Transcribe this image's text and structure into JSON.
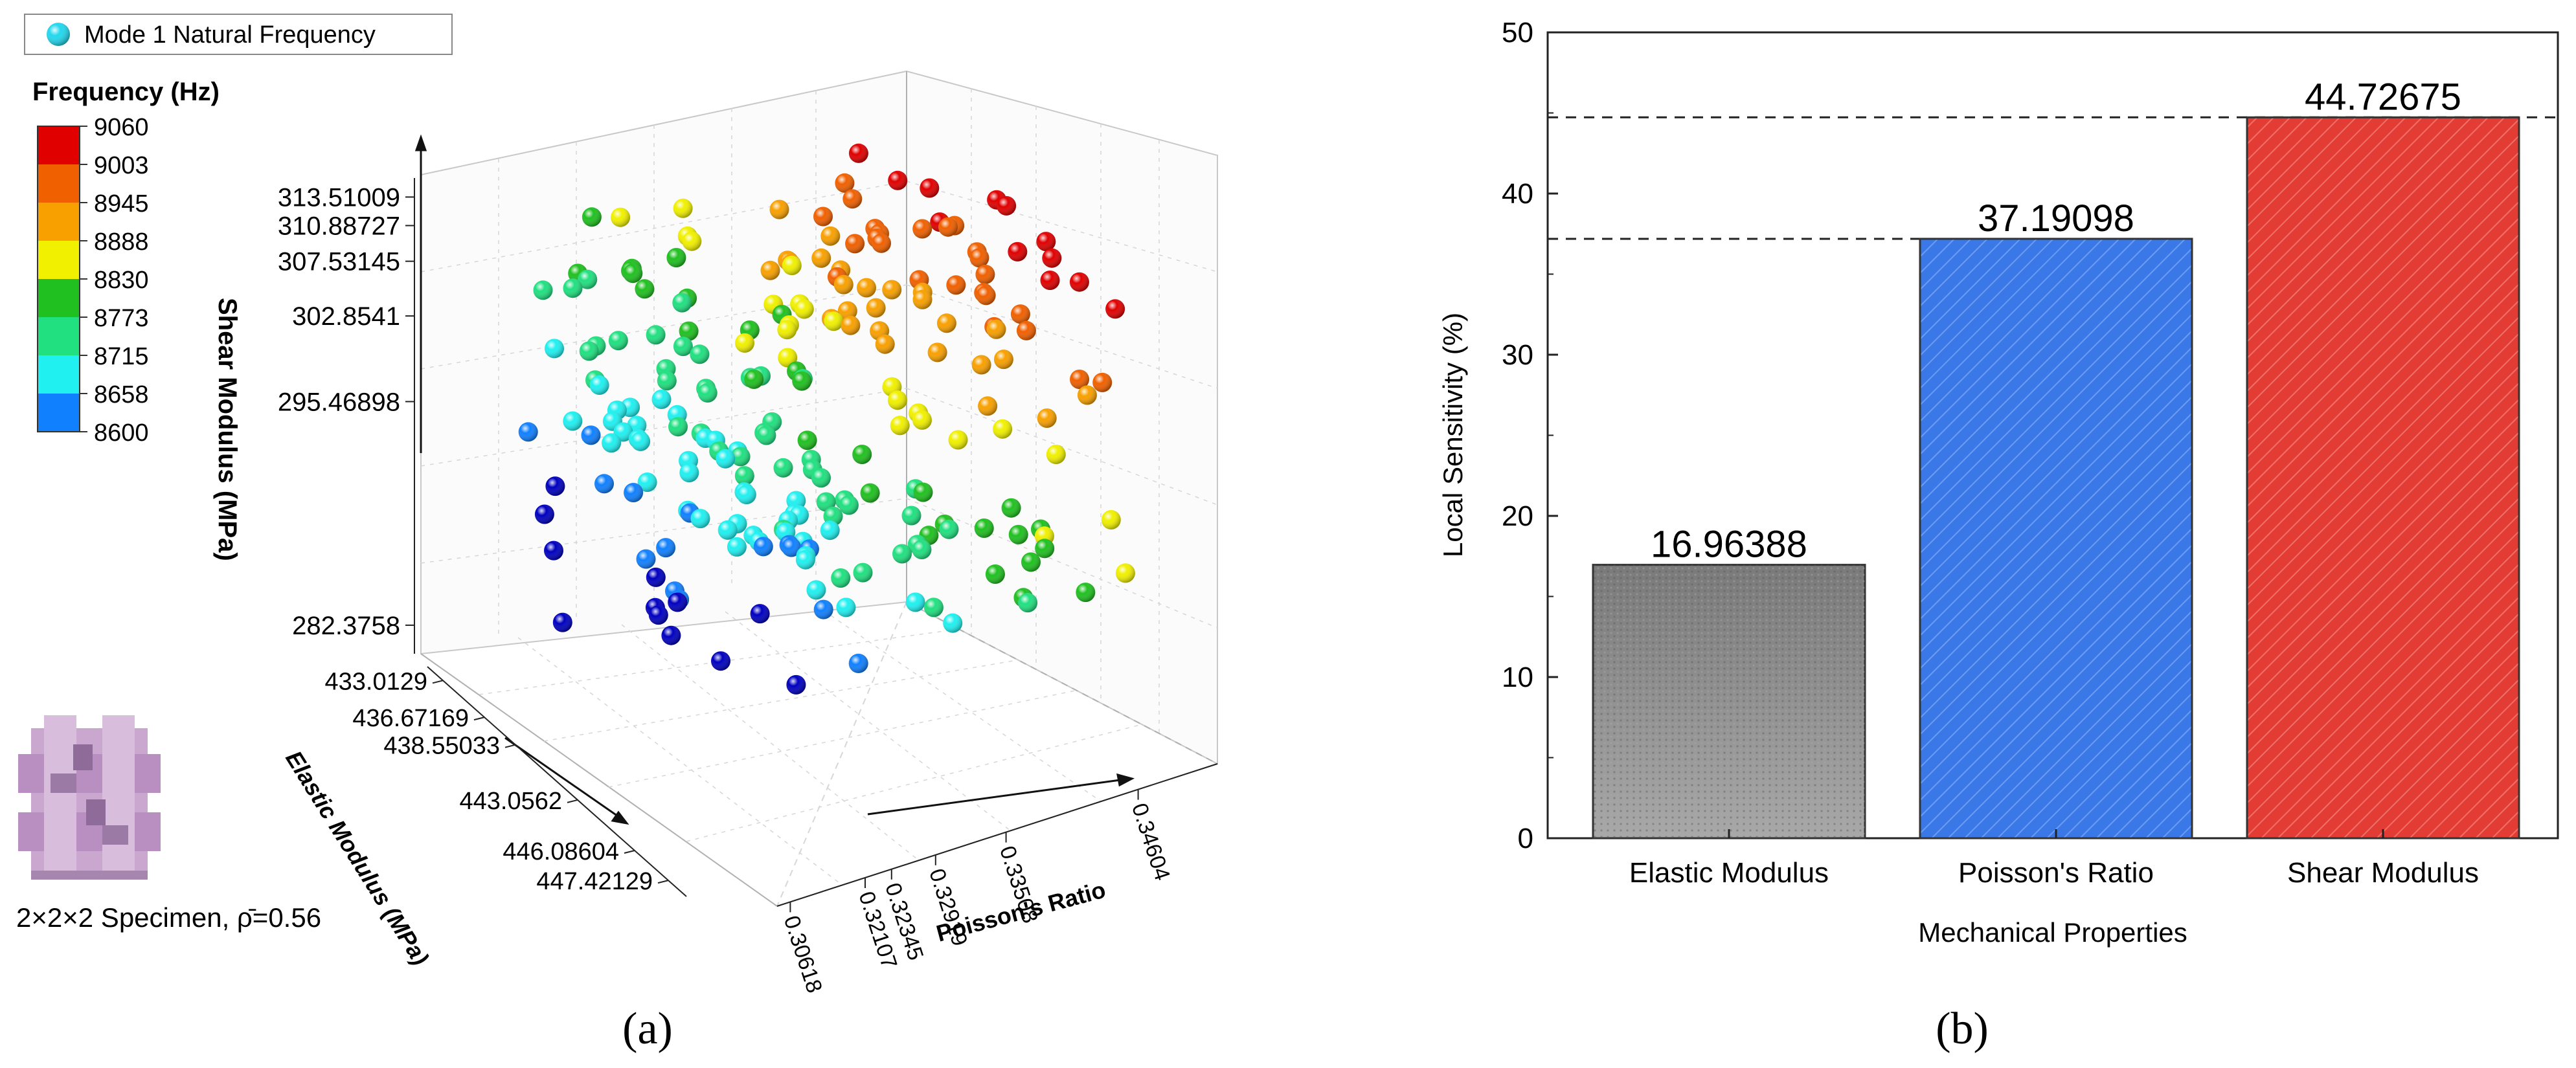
{
  "panel_a": {
    "caption": "(a)",
    "legend_label": "Mode 1 Natural Frequency",
    "colorbar_title": "Frequency (Hz)",
    "colorbar_ticks": [
      "9060",
      "9003",
      "8945",
      "8888",
      "8830",
      "8773",
      "8715",
      "8658",
      "8600"
    ],
    "colorbar_colors": [
      "#e00000",
      "#f06000",
      "#f8a000",
      "#f0f000",
      "#20c020",
      "#20e080",
      "#20f0f0",
      "#1080ff",
      "#0000c0"
    ],
    "specimen_label": "2×2×2 Specimen, ρ̄=0.56",
    "z_axis_label": "Shear Modulus (MPa)",
    "z_ticks": [
      "313.51009",
      "310.88727",
      "307.53145",
      "302.8541",
      "295.46898",
      "282.3758"
    ],
    "y_axis_label": "Elastic Modulus (MPa)",
    "y_ticks": [
      "433.0129",
      "436.67169",
      "438.55033",
      "443.0562",
      "446.08604",
      "447.42129"
    ],
    "x_axis_label": "Poisson's Ratio",
    "x_ticks": [
      "0.30618",
      "0.32107",
      "0.32345",
      "0.32919",
      "0.33508",
      "0.34604"
    ]
  },
  "panel_b": {
    "caption": "(b)",
    "chart_data": {
      "type": "bar",
      "title": "",
      "categories": [
        "Elastic Modulus",
        "Poisson's Ratio",
        "Shear Modulus"
      ],
      "values": [
        16.96388,
        37.19098,
        44.72675
      ],
      "value_labels": [
        "16.96388",
        "37.19098",
        "44.72675"
      ],
      "colors": [
        "#808080",
        "#3a78e8",
        "#e23c34"
      ],
      "xlabel": "Mechanical Properties",
      "ylabel": "Local Sensitivity (%)",
      "ylim": [
        0,
        50
      ],
      "yticks": [
        "0",
        "10",
        "20",
        "30",
        "40",
        "50"
      ],
      "reference_lines": [
        37.19098,
        44.72675
      ],
      "grid": false
    }
  }
}
